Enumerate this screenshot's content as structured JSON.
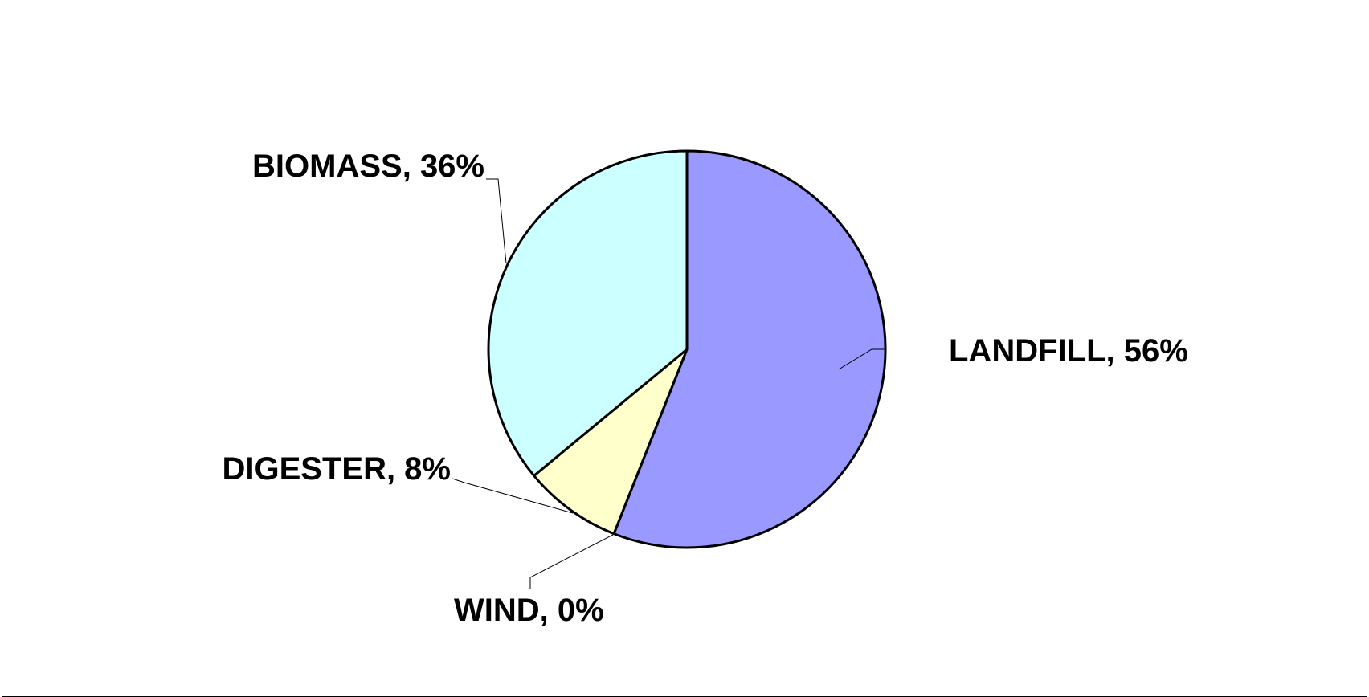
{
  "chart_data": {
    "type": "pie",
    "slices": [
      {
        "label": "LANDFILL",
        "value": 56,
        "display": "LANDFILL, 56%",
        "color": "#9999ff"
      },
      {
        "label": "WIND",
        "value": 0,
        "display": "WIND, 0%",
        "color": "#ffffcc"
      },
      {
        "label": "DIGESTER",
        "value": 8,
        "display": "DIGESTER, 8%",
        "color": "#ffffcc"
      },
      {
        "label": "BIOMASS",
        "value": 36,
        "display": "BIOMASS, 36%",
        "color": "#ccffff"
      }
    ],
    "title": "",
    "legend": "none",
    "outline_color": "#000000"
  }
}
